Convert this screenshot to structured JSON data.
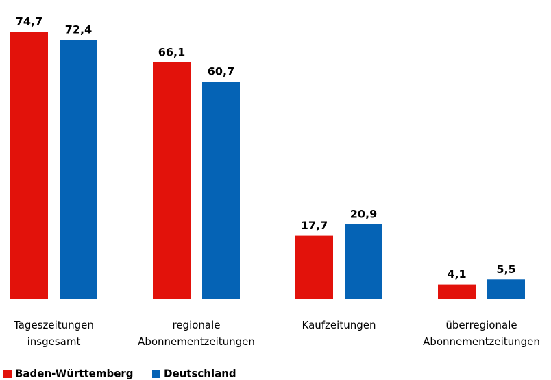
{
  "chart_data": {
    "type": "bar",
    "categories": [
      "Tageszeitungen insgesamt",
      "regionale Abonnementzeitungen",
      "Kaufzeitungen",
      "überregionale Abonnementzeitungen"
    ],
    "series": [
      {
        "name": "Baden-Württemberg",
        "color": "#e2120b",
        "values": [
          74.7,
          66.1,
          17.7,
          4.1
        ],
        "value_labels": [
          "74,7",
          "66,1",
          "17,7",
          "4,1"
        ]
      },
      {
        "name": "Deutschland",
        "color": "#0563b5",
        "values": [
          72.4,
          60.7,
          20.9,
          5.5
        ],
        "value_labels": [
          "72,4",
          "60,7",
          "20,9",
          "5,5"
        ]
      }
    ]
  }
}
